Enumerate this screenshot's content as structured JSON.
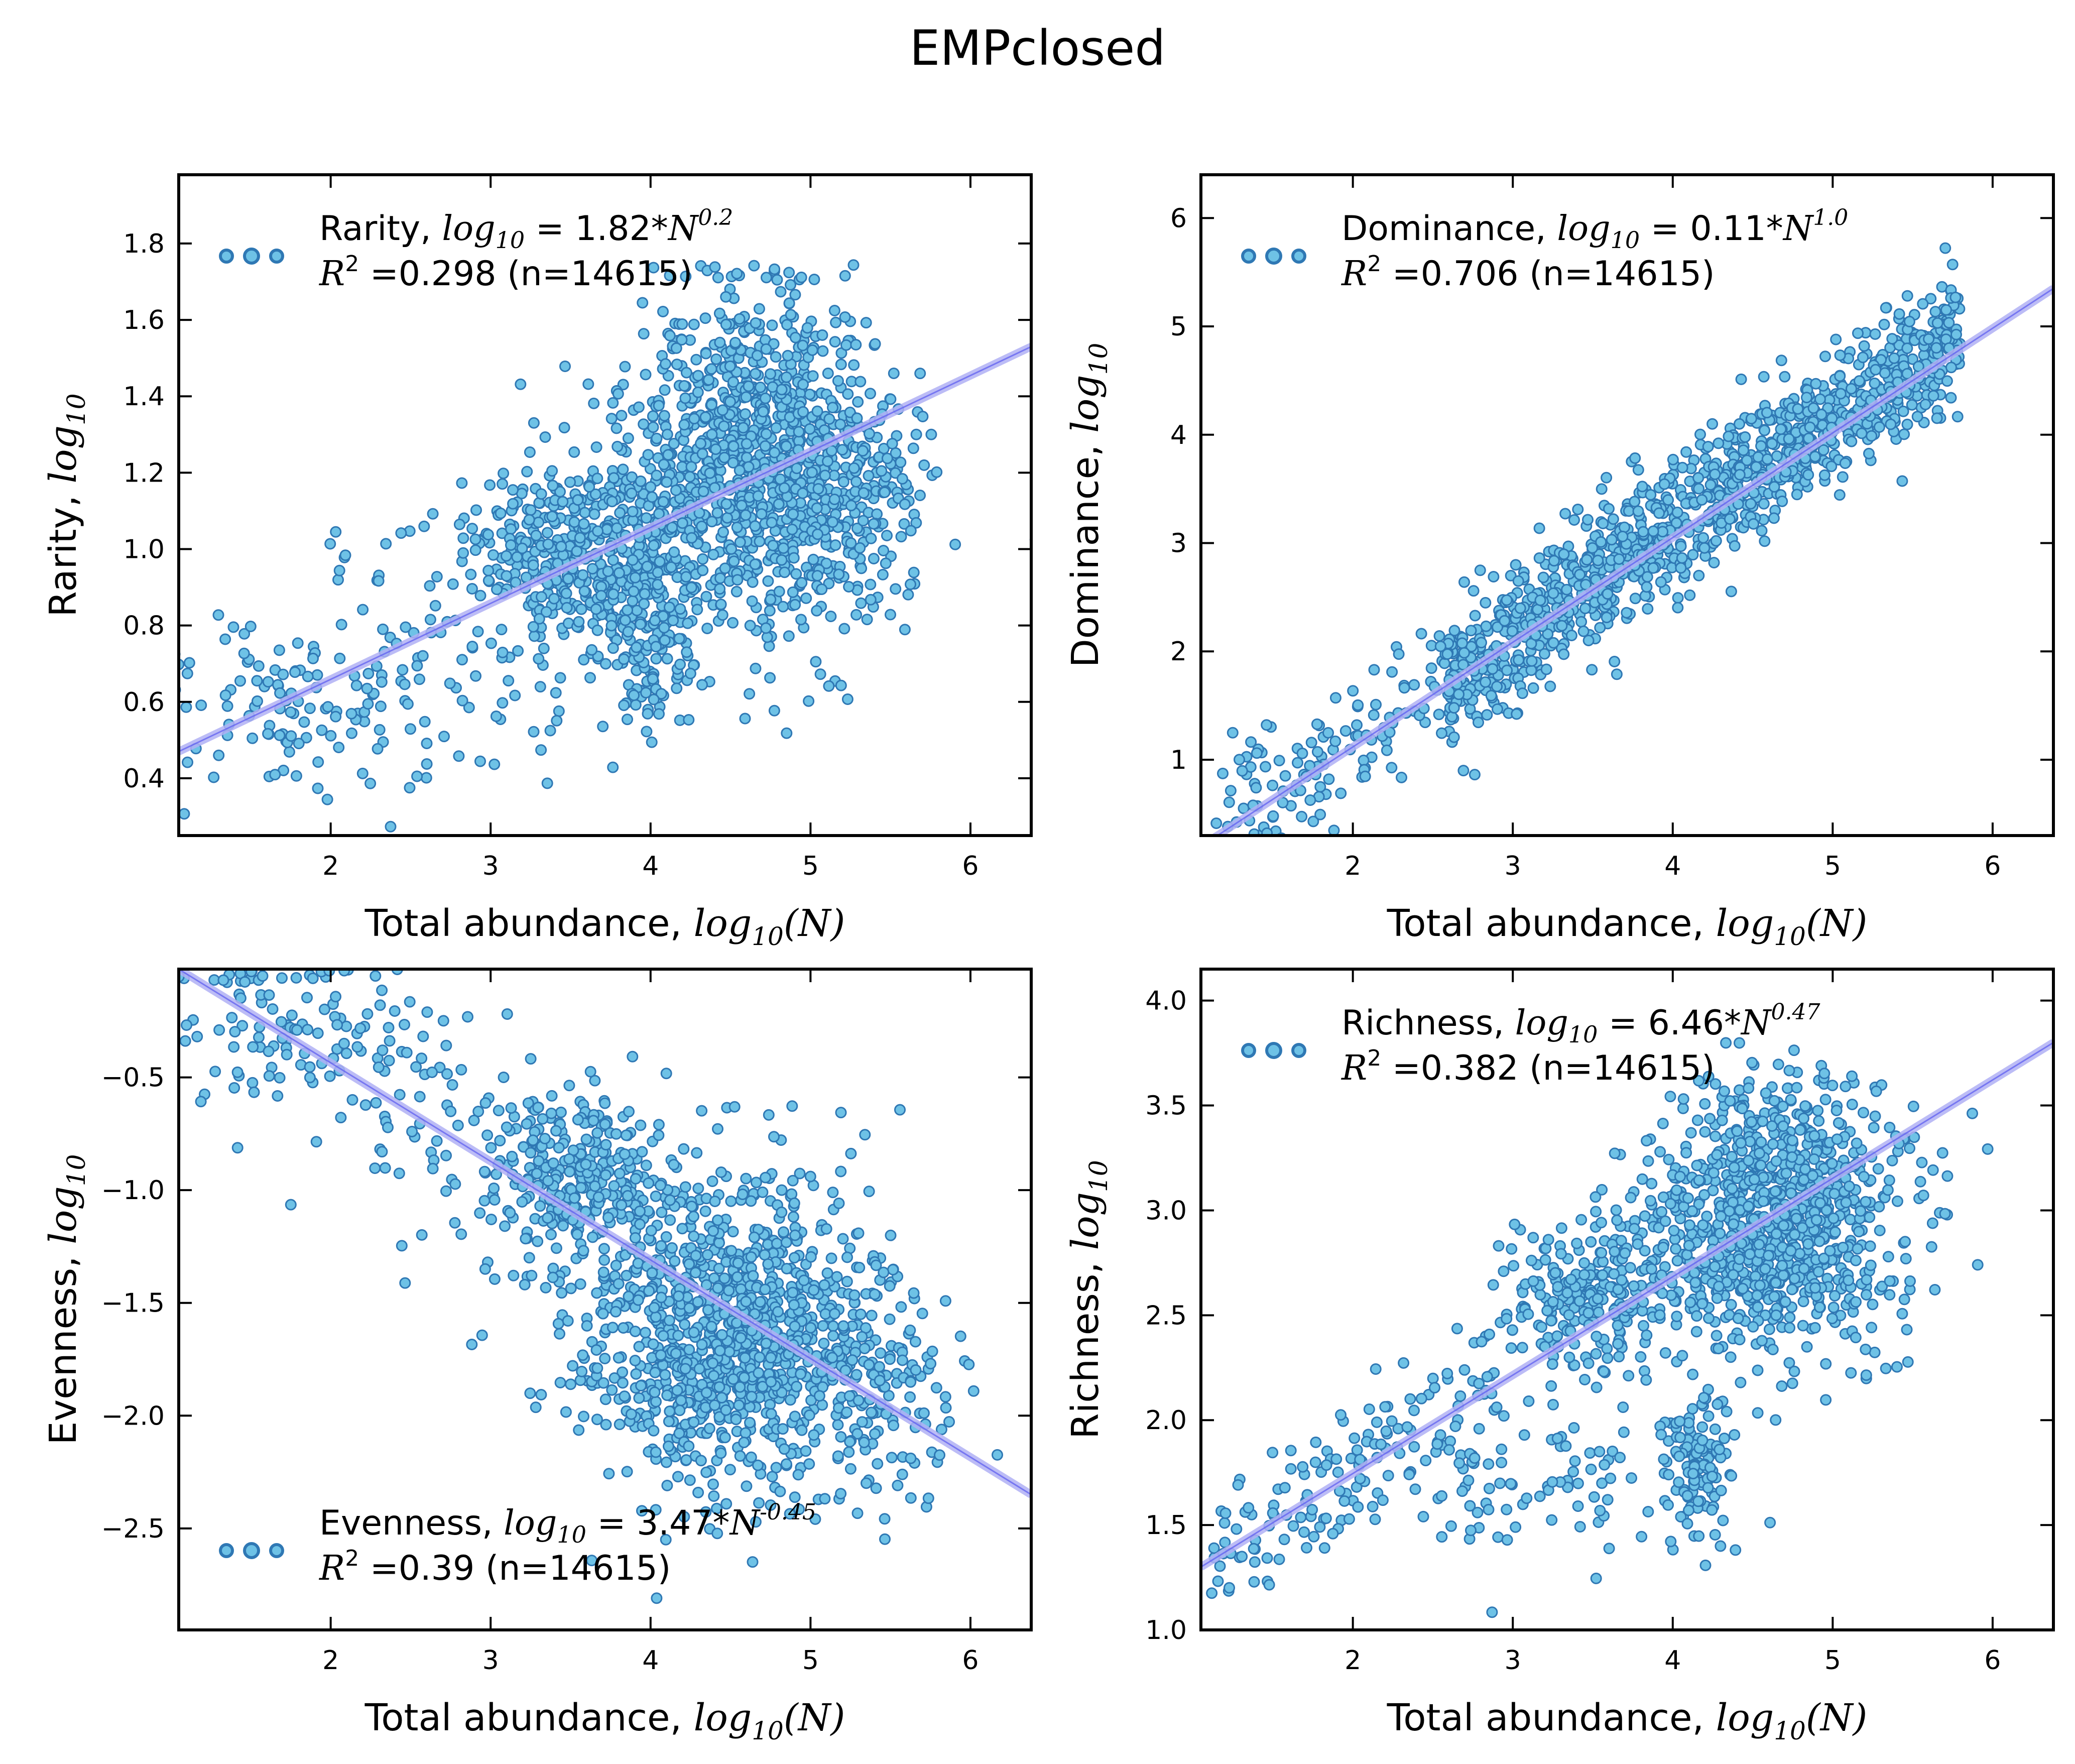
{
  "figure": {
    "title": "EMPclosed"
  },
  "colors": {
    "point_fill": "#6ec2e6",
    "point_stroke": "#2f78b4",
    "fit_line": "#b0b0f5",
    "fit_line_core": "#5a5af0",
    "axes": "#000000"
  },
  "chart_data": [
    {
      "id": "rarity",
      "type": "scatter",
      "xlabel": "Total abundance, log10(N)",
      "ylabel": "Rarity, log10",
      "xlim": [
        1.05,
        6.38
      ],
      "ylim": [
        0.25,
        1.98
      ],
      "xticks": [
        2,
        3,
        4,
        5,
        6
      ],
      "yticks": [
        0.4,
        0.6,
        0.8,
        1.0,
        1.2,
        1.4,
        1.6,
        1.8
      ],
      "ytick_decimals": 1,
      "legend": {
        "position": "top-left",
        "name": "Rarity",
        "coef": "1.82",
        "exponent": "0.2",
        "r2": "0.298",
        "n": "14615"
      },
      "fit": {
        "x": [
          1.05,
          6.38
        ],
        "y": [
          0.47,
          1.53
        ]
      },
      "point_clusters": [
        {
          "cx": 4.6,
          "cy": 1.25,
          "sx": 0.38,
          "sy": 0.22,
          "n": 900,
          "ymin": 0.45,
          "ymax": 1.75
        },
        {
          "cx": 3.6,
          "cy": 1.0,
          "sx": 0.35,
          "sy": 0.12,
          "n": 450
        },
        {
          "cx": 4.0,
          "cy": 0.75,
          "sx": 0.15,
          "sy": 0.12,
          "n": 150
        },
        {
          "cx": 5.2,
          "cy": 1.15,
          "sx": 0.3,
          "sy": 0.15,
          "n": 250
        },
        {
          "cx": 1.8,
          "cy": 0.58,
          "sx": 0.45,
          "sy": 0.13,
          "n": 120
        },
        {
          "cx": 2.8,
          "cy": 0.75,
          "sx": 0.5,
          "sy": 0.18,
          "n": 90
        }
      ]
    },
    {
      "id": "dominance",
      "type": "scatter",
      "xlabel": "Total abundance, log10(N)",
      "ylabel": "Dominance, log10",
      "xlim": [
        1.05,
        6.38
      ],
      "ylim": [
        0.3,
        6.4
      ],
      "xticks": [
        2,
        3,
        4,
        5,
        6
      ],
      "yticks": [
        1,
        2,
        3,
        4,
        5,
        6
      ],
      "ytick_decimals": 0,
      "legend": {
        "position": "top-left",
        "name": "Dominance",
        "coef": "0.11",
        "exponent": "1.0",
        "r2": "0.706",
        "n": "14615"
      },
      "fit": {
        "x": [
          1.05,
          6.38
        ],
        "y": [
          0.2,
          5.35
        ]
      },
      "point_clusters": [
        {
          "line": true,
          "a": -0.85,
          "b": 1.0,
          "xmin": 2.6,
          "xmax": 5.8,
          "sy": 0.32,
          "n": 1200
        },
        {
          "line": true,
          "a": -0.85,
          "b": 1.0,
          "xmin": 1.1,
          "xmax": 2.7,
          "sy": 0.35,
          "n": 160
        }
      ]
    },
    {
      "id": "evenness",
      "type": "scatter",
      "xlabel": "Total abundance, log10(N)",
      "ylabel": "Evenness, log10",
      "xlim": [
        1.05,
        6.38
      ],
      "ylim": [
        -2.95,
        -0.02
      ],
      "xticks": [
        2,
        3,
        4,
        5,
        6
      ],
      "yticks": [
        -2.5,
        -2.0,
        -1.5,
        -1.0,
        -0.5
      ],
      "ytick_decimals": 1,
      "legend": {
        "position": "bottom-left",
        "name": "Evenness",
        "coef": "3.47",
        "exponent": "-0.45",
        "r2": "0.39",
        "n": "14615"
      },
      "fit": {
        "x": [
          1.05,
          6.38
        ],
        "y": [
          -0.02,
          -2.35
        ]
      },
      "point_clusters": [
        {
          "cx": 4.5,
          "cy": -1.65,
          "sx": 0.45,
          "sy": 0.35,
          "n": 1100,
          "ymax": -0.6,
          "ymin": -2.9
        },
        {
          "cx": 3.5,
          "cy": -0.95,
          "sx": 0.3,
          "sy": 0.22,
          "n": 300
        },
        {
          "cx": 1.8,
          "cy": -0.3,
          "sx": 0.45,
          "sy": 0.22,
          "n": 110,
          "ymax": -0.02
        },
        {
          "cx": 2.6,
          "cy": -0.6,
          "sx": 0.35,
          "sy": 0.3,
          "n": 60
        },
        {
          "cx": 5.5,
          "cy": -1.9,
          "sx": 0.25,
          "sy": 0.25,
          "n": 120
        }
      ]
    },
    {
      "id": "richness",
      "type": "scatter",
      "xlabel": "Total abundance, log10(N)",
      "ylabel": "Richness, log10",
      "xlim": [
        1.05,
        6.38
      ],
      "ylim": [
        1.0,
        4.15
      ],
      "xticks": [
        2,
        3,
        4,
        5,
        6
      ],
      "yticks": [
        1.0,
        1.5,
        2.0,
        2.5,
        3.0,
        3.5,
        4.0
      ],
      "ytick_decimals": 1,
      "legend": {
        "position": "top-left",
        "name": "Richness",
        "coef": "6.46",
        "exponent": "0.47",
        "r2": "0.382",
        "n": "14615"
      },
      "fit": {
        "x": [
          1.05,
          6.38
        ],
        "y": [
          1.3,
          3.8
        ]
      },
      "point_clusters": [
        {
          "cx": 4.6,
          "cy": 2.95,
          "sx": 0.4,
          "sy": 0.32,
          "n": 1000,
          "ymin": 2.0,
          "ymax": 3.8
        },
        {
          "cx": 3.5,
          "cy": 2.6,
          "sx": 0.3,
          "sy": 0.2,
          "n": 250
        },
        {
          "cx": 4.15,
          "cy": 1.8,
          "sx": 0.12,
          "sy": 0.15,
          "n": 120
        },
        {
          "line": true,
          "a": 0.75,
          "b": 0.5,
          "xmin": 1.1,
          "xmax": 2.9,
          "sy": 0.15,
          "n": 150
        },
        {
          "cx": 3.2,
          "cy": 1.7,
          "sx": 0.5,
          "sy": 0.2,
          "n": 90
        }
      ]
    }
  ]
}
